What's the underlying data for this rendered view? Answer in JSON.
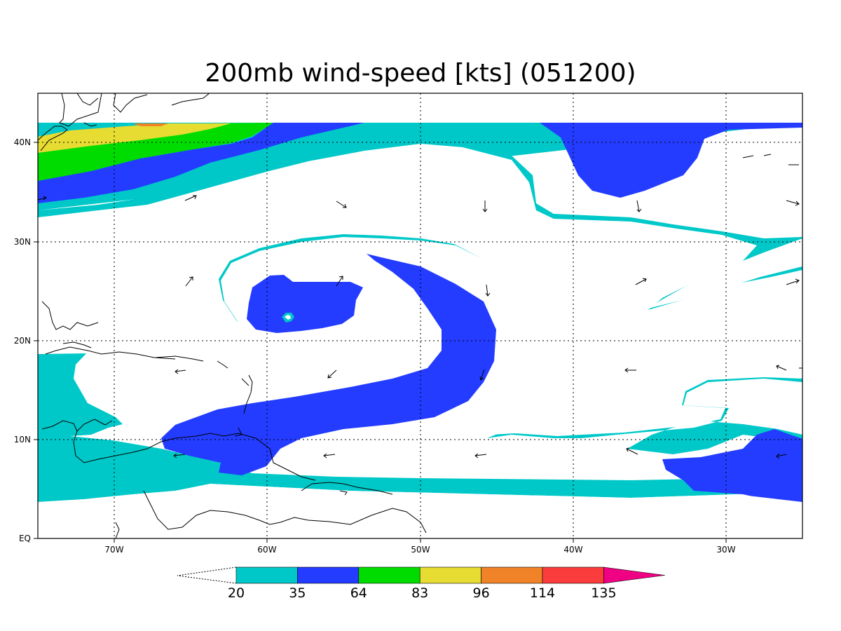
{
  "title": "200mb wind-speed [kts] (051200)",
  "axes": {
    "x_ticks": [
      "70W",
      "60W",
      "50W",
      "40W",
      "30W"
    ],
    "y_ticks": [
      "40N",
      "30N",
      "20N",
      "10N",
      "EQ"
    ]
  },
  "colorbar": {
    "labels": [
      "20",
      "35",
      "64",
      "83",
      "96",
      "114",
      "135"
    ],
    "colors": [
      "#00c8c8",
      "#233cff",
      "#00dc00",
      "#e6dc32",
      "#f08228",
      "#fa3c3c",
      "#f00082"
    ],
    "bins": [
      {
        "from": 20,
        "to": 35,
        "color": "#00c8c8"
      },
      {
        "from": 35,
        "to": 64,
        "color": "#233cff"
      },
      {
        "from": 64,
        "to": 83,
        "color": "#00dc00"
      },
      {
        "from": 83,
        "to": 96,
        "color": "#e6dc32"
      },
      {
        "from": 96,
        "to": 114,
        "color": "#f08228"
      },
      {
        "from": 114,
        "to": 135,
        "color": "#fa3c3c"
      },
      {
        "from": 135,
        "to": null,
        "color": "#f00082"
      }
    ]
  },
  "region": {
    "lon_range": [
      "75W",
      "25W"
    ],
    "lat_range": [
      "EQ",
      "45N"
    ]
  }
}
